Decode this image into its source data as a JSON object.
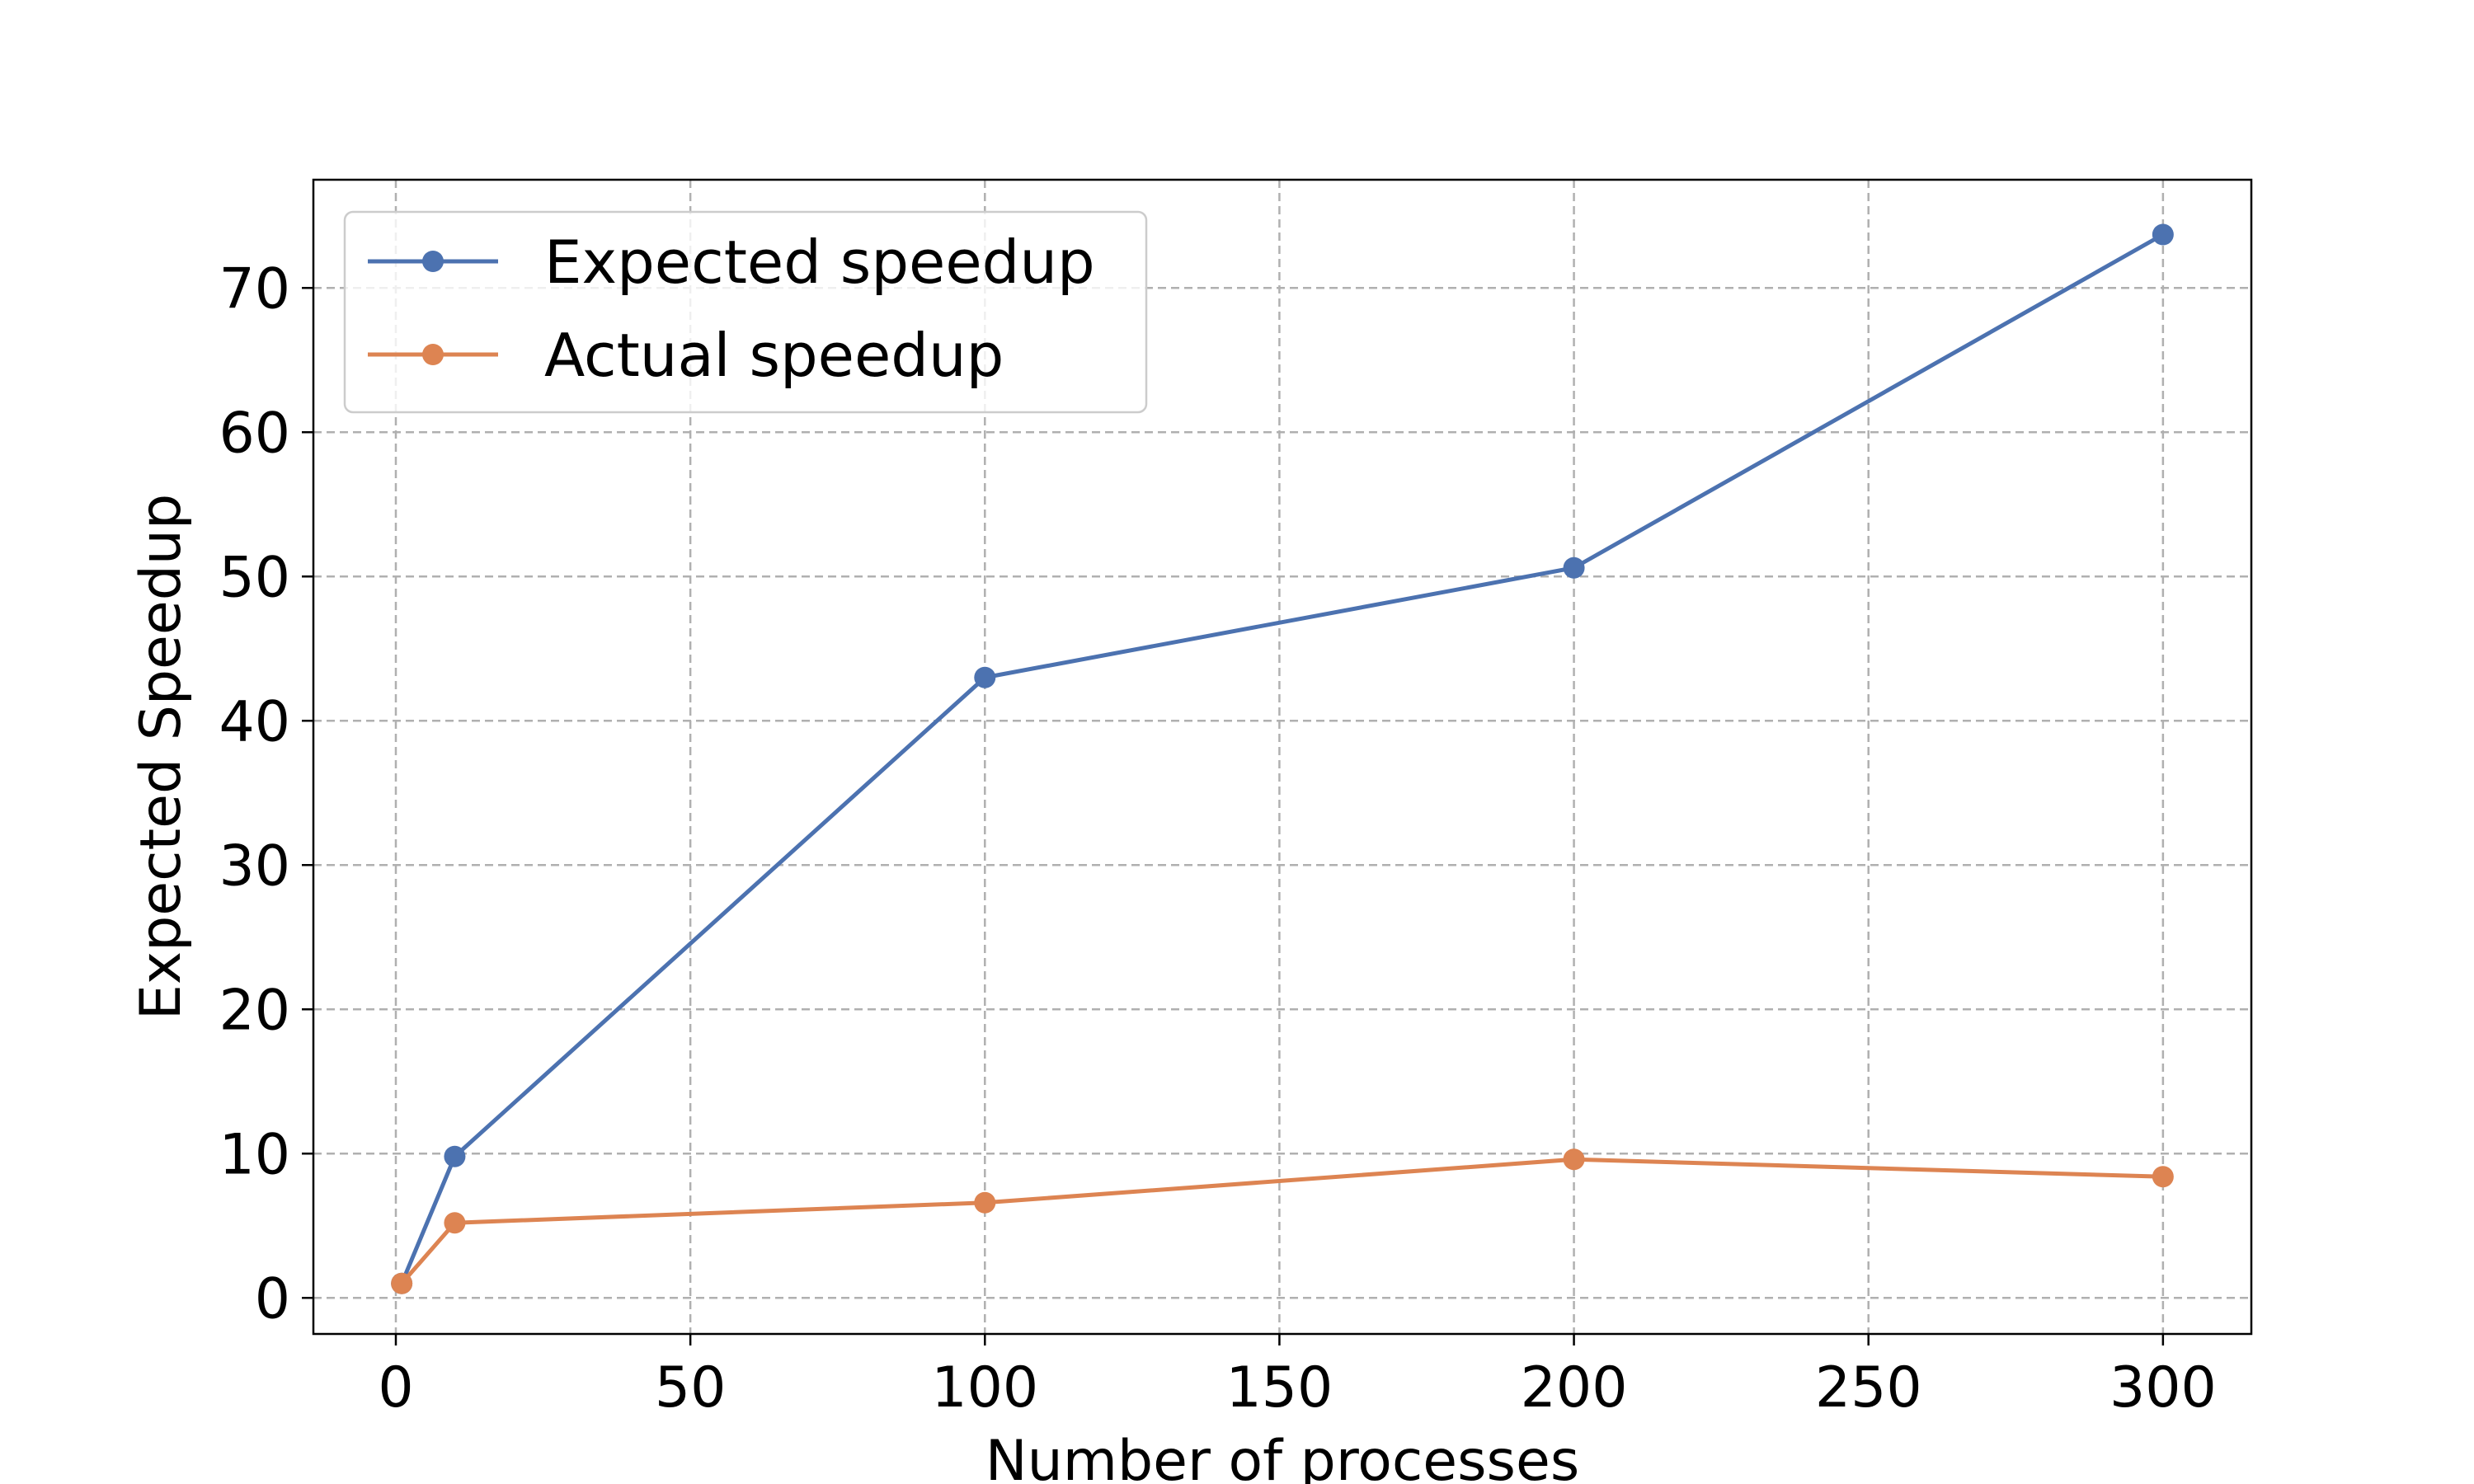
{
  "chart_data": {
    "type": "line",
    "title": "",
    "xlabel": "Number of processes",
    "ylabel": "Expected Speedup",
    "xlim": [
      -14,
      315
    ],
    "ylim": [
      -2.5,
      77.5
    ],
    "xticks": [
      0,
      50,
      100,
      150,
      200,
      250,
      300
    ],
    "yticks": [
      0,
      10,
      20,
      30,
      40,
      50,
      60,
      70
    ],
    "grid": true,
    "legend_position": "top-left",
    "series": [
      {
        "name": "Expected speedup",
        "color": "#4c72b0",
        "x": [
          1,
          10,
          100,
          200,
          300
        ],
        "y": [
          1,
          9.8,
          43,
          50.6,
          73.7
        ]
      },
      {
        "name": "Actual speedup",
        "color": "#dd8452",
        "x": [
          1,
          10,
          100,
          200,
          300
        ],
        "y": [
          1,
          5.2,
          6.6,
          9.6,
          8.4
        ]
      }
    ]
  }
}
